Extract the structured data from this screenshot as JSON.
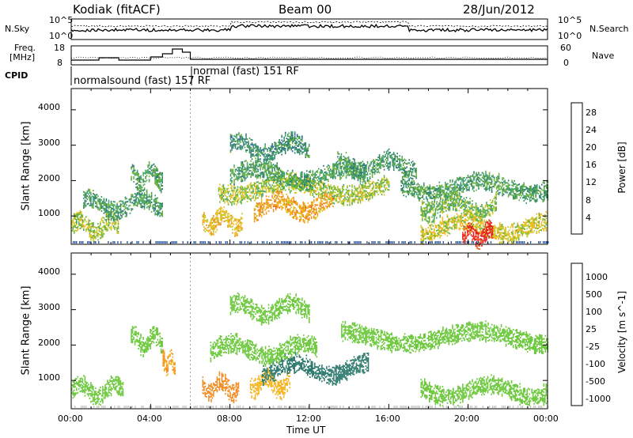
{
  "header": {
    "station": "Kodiak (fitACF)",
    "beam": "Beam 00",
    "date": "28/Jun/2012"
  },
  "top_panels": {
    "nsky_label": "N.Sky",
    "nsearch_label": "N.Search",
    "noise_ticks": [
      "10^5",
      "10^0"
    ],
    "freq_label_line1": "Freq.",
    "freq_label_line2": "[MHz]",
    "freq_ticks": [
      "18",
      "8"
    ],
    "nave_label": "Nave",
    "nave_ticks": [
      "60",
      "0"
    ],
    "cpid_label": "CPID",
    "cpid_1": "normalsound (fast) 157 RF",
    "cpid_2": "normal (fast) 151 RF"
  },
  "chart_data": [
    {
      "type": "heatmap",
      "panel": "power",
      "ylabel": "Slant Range [km]",
      "xlabel": "",
      "xlim": [
        0,
        24
      ],
      "ylim": [
        200,
        4600
      ],
      "yticks": [
        "1000",
        "2000",
        "3000",
        "4000"
      ],
      "colorbar_label": "Power [dB]",
      "colorbar_ticks": [
        "28",
        "24",
        "20",
        "16",
        "12",
        "8",
        "4"
      ],
      "colorbar_colors": [
        "#e8141b",
        "#f0561c",
        "#f08a1e",
        "#f5b520",
        "#c8c820",
        "#6ab23a",
        "#3c9e6a",
        "#2d7a6e",
        "#2a5aa8",
        "#1c34d8"
      ],
      "features": [
        {
          "t_start": 0.0,
          "t_end": 2.4,
          "range_km": 700,
          "level_db": 14
        },
        {
          "t_start": 0.6,
          "t_end": 4.6,
          "range_km": 1300,
          "level_db": 9
        },
        {
          "t_start": 3.0,
          "t_end": 4.6,
          "range_km": 2100,
          "level_db": 10
        },
        {
          "t_start": 6.6,
          "t_end": 8.6,
          "range_km": 850,
          "level_db": 18
        },
        {
          "t_start": 7.4,
          "t_end": 16.0,
          "range_km": 1750,
          "level_db": 14
        },
        {
          "t_start": 9.2,
          "t_end": 13.2,
          "range_km": 1250,
          "level_db": 20
        },
        {
          "t_start": 8.0,
          "t_end": 14.8,
          "range_km": 2150,
          "level_db": 10
        },
        {
          "t_start": 8.0,
          "t_end": 12.0,
          "range_km": 2900,
          "level_db": 8
        },
        {
          "t_start": 13.4,
          "t_end": 17.4,
          "range_km": 2400,
          "level_db": 9
        },
        {
          "t_start": 16.6,
          "t_end": 24.0,
          "range_km": 1800,
          "level_db": 10
        },
        {
          "t_start": 17.6,
          "t_end": 21.4,
          "range_km": 1250,
          "level_db": 12
        },
        {
          "t_start": 17.6,
          "t_end": 24.0,
          "range_km": 650,
          "level_db": 16
        },
        {
          "t_start": 19.7,
          "t_end": 21.2,
          "range_km": 450,
          "level_db": 28
        }
      ]
    },
    {
      "type": "heatmap",
      "panel": "velocity",
      "ylabel": "Slant Range [km]",
      "xlabel": "Time UT",
      "xlim": [
        0,
        24
      ],
      "ylim": [
        200,
        4600
      ],
      "xticks": [
        "00:00",
        "04:00",
        "08:00",
        "12:00",
        "16:00",
        "20:00",
        "00:00"
      ],
      "yticks": [
        "1000",
        "2000",
        "3000",
        "4000"
      ],
      "colorbar_label": "Velocity [m s^-1]",
      "colorbar_ticks": [
        "1000",
        "500",
        "100",
        "25",
        "-25",
        "-100",
        "-500",
        "-1000"
      ],
      "colorbar_colors": [
        "#1c34d8",
        "#2a5aa8",
        "#2d7a6e",
        "#3c9e6a",
        "#6ac83a",
        "#c8c8c8",
        "#f5b520",
        "#f08a1e",
        "#f0561c",
        "#e8141b"
      ],
      "features": [
        {
          "t_start": 0.0,
          "t_end": 2.6,
          "range_km": 700,
          "velocity": 0
        },
        {
          "t_start": 3.0,
          "t_end": 4.6,
          "range_km": 2100,
          "velocity": 0
        },
        {
          "t_start": 4.6,
          "t_end": 5.2,
          "range_km": 1500,
          "velocity": -300
        },
        {
          "t_start": 6.6,
          "t_end": 8.4,
          "range_km": 800,
          "velocity": -400
        },
        {
          "t_start": 9.0,
          "t_end": 11.0,
          "range_km": 900,
          "velocity": -80
        },
        {
          "t_start": 9.6,
          "t_end": 15.0,
          "range_km": 1300,
          "velocity": 120
        },
        {
          "t_start": 7.0,
          "t_end": 12.4,
          "range_km": 1850,
          "velocity": 0
        },
        {
          "t_start": 8.0,
          "t_end": 12.0,
          "range_km": 3000,
          "velocity": 0
        },
        {
          "t_start": 13.6,
          "t_end": 24.0,
          "range_km": 2200,
          "velocity": 0
        },
        {
          "t_start": 17.6,
          "t_end": 24.0,
          "range_km": 700,
          "velocity": 0
        }
      ]
    }
  ]
}
